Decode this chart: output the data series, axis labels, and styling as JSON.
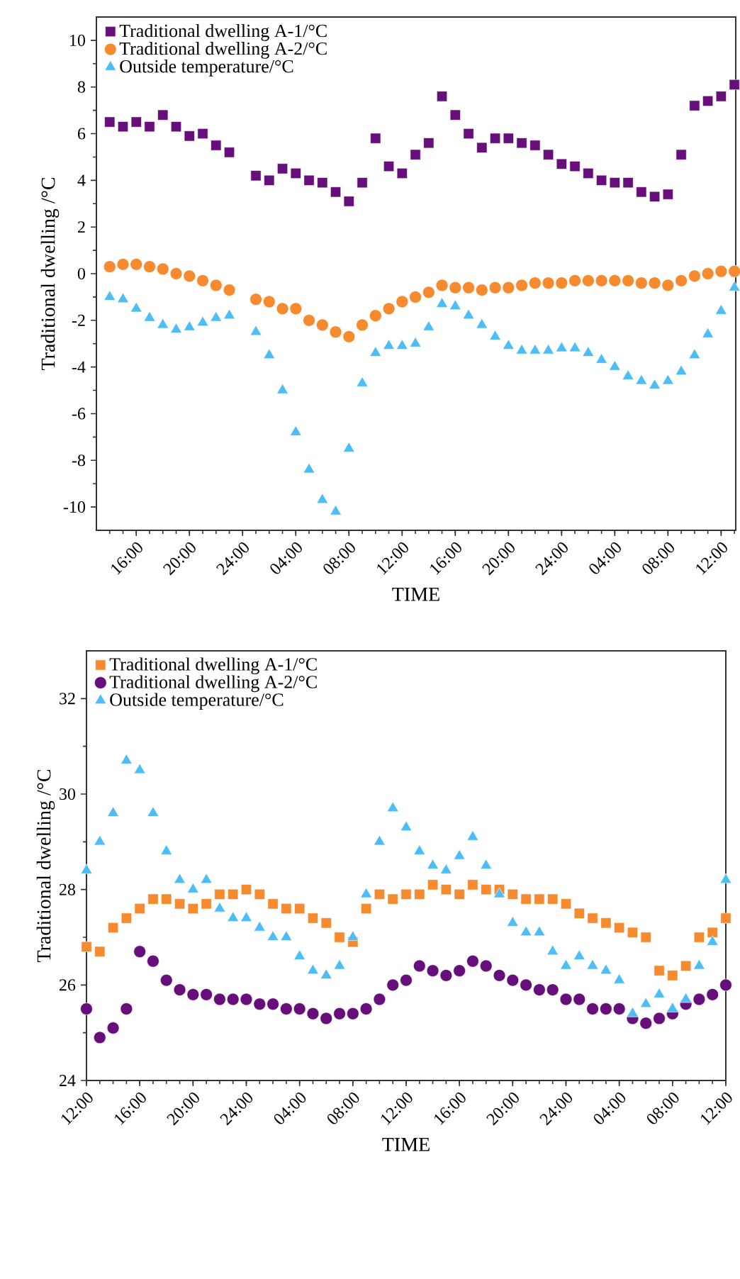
{
  "chart_data": [
    {
      "type": "scatter",
      "xlabel": "TIME",
      "ylabel": "Traditional dwelling /°C",
      "legend": "top left",
      "grid": false,
      "ylim": [
        -11,
        11
      ],
      "yticks": [
        -10,
        -8,
        -6,
        -4,
        -2,
        0,
        2,
        4,
        6,
        8,
        10
      ],
      "categories": [
        null,
        null,
        "16:00",
        null,
        null,
        null,
        "20:00",
        null,
        null,
        null,
        "24:00",
        null,
        null,
        null,
        "04:00",
        null,
        null,
        null,
        "08:00",
        null,
        null,
        null,
        "12:00",
        null,
        null,
        null,
        "16:00",
        null,
        null,
        null,
        "20:00",
        null,
        null,
        null,
        "24:00",
        null,
        null,
        null,
        "04:00",
        null,
        null,
        null,
        "08:00",
        null,
        null,
        null,
        "12:00",
        null
      ],
      "series": [
        {
          "name": "Traditional dwelling A-1/°C",
          "color": "#660e7a",
          "marker": "square",
          "values": [
            6.5,
            6.3,
            6.5,
            6.3,
            6.8,
            6.3,
            5.9,
            6.0,
            5.5,
            5.2,
            null,
            4.2,
            4.0,
            4.5,
            4.3,
            4.0,
            3.9,
            3.5,
            3.1,
            3.9,
            5.8,
            4.6,
            4.3,
            5.1,
            5.6,
            7.6,
            6.8,
            6.0,
            5.4,
            5.8,
            5.8,
            5.6,
            5.5,
            5.1,
            4.7,
            4.6,
            4.3,
            4.0,
            3.9,
            3.9,
            3.5,
            3.3,
            3.4,
            5.1,
            7.2,
            7.4,
            7.6,
            8.1
          ]
        },
        {
          "name": "Traditional dwelling A-2/°C",
          "color": "#f58a2e",
          "marker": "circle",
          "values": [
            0.3,
            0.4,
            0.4,
            0.3,
            0.2,
            0.0,
            -0.1,
            -0.3,
            -0.5,
            -0.7,
            null,
            -1.1,
            -1.2,
            -1.5,
            -1.5,
            -2.0,
            -2.2,
            -2.5,
            -2.7,
            -2.2,
            -1.8,
            -1.5,
            -1.2,
            -1.0,
            -0.8,
            -0.5,
            -0.6,
            -0.6,
            -0.7,
            -0.6,
            -0.6,
            -0.5,
            -0.4,
            -0.4,
            -0.4,
            -0.3,
            -0.3,
            -0.3,
            -0.3,
            -0.3,
            -0.4,
            -0.4,
            -0.5,
            -0.3,
            -0.1,
            0.0,
            0.1,
            0.1
          ]
        },
        {
          "name": "Outside temperature/°C",
          "color": "#4dbdf5",
          "marker": "triangle",
          "values": [
            -1.0,
            -1.1,
            -1.5,
            -1.9,
            -2.2,
            -2.4,
            -2.3,
            -2.1,
            -1.9,
            -1.8,
            null,
            -2.5,
            -3.5,
            -5.0,
            -6.8,
            -8.4,
            -9.7,
            -10.2,
            -7.5,
            -4.7,
            -3.4,
            -3.1,
            -3.1,
            -3.0,
            -2.3,
            -1.3,
            -1.4,
            -1.8,
            -2.2,
            -2.7,
            -3.1,
            -3.3,
            -3.3,
            -3.3,
            -3.2,
            -3.2,
            -3.4,
            -3.7,
            -4.0,
            -4.4,
            -4.6,
            -4.8,
            -4.6,
            -4.2,
            -3.5,
            -2.6,
            -1.6,
            -0.6
          ]
        }
      ]
    },
    {
      "type": "scatter",
      "xlabel": "TIME",
      "ylabel": "Traditional dwelling /°C",
      "legend": "top left",
      "grid": false,
      "ylim": [
        24,
        33
      ],
      "yticks": [
        24,
        26,
        28,
        30,
        32
      ],
      "categories": [
        "12:00",
        null,
        null,
        null,
        "16:00",
        null,
        null,
        null,
        "20:00",
        null,
        null,
        null,
        "24:00",
        null,
        null,
        null,
        "04:00",
        null,
        null,
        null,
        "08:00",
        null,
        null,
        null,
        "12:00",
        null,
        null,
        null,
        "16:00",
        null,
        null,
        null,
        "20:00",
        null,
        null,
        null,
        "24:00",
        null,
        null,
        null,
        "04:00",
        null,
        null,
        null,
        "08:00",
        null,
        null,
        null,
        "12:00"
      ],
      "series": [
        {
          "name": "Traditional dwelling A-1/°C",
          "color": "#f58a2e",
          "marker": "square",
          "values": [
            26.8,
            26.7,
            27.2,
            27.4,
            27.6,
            27.8,
            27.8,
            27.7,
            27.6,
            27.7,
            27.9,
            27.9,
            28.0,
            27.9,
            27.7,
            27.6,
            27.6,
            27.4,
            27.3,
            27.0,
            26.9,
            27.6,
            27.9,
            27.8,
            27.9,
            27.9,
            28.1,
            28.0,
            27.9,
            28.1,
            28.0,
            28.0,
            27.9,
            27.8,
            27.8,
            27.8,
            27.7,
            27.5,
            27.4,
            27.3,
            27.2,
            27.1,
            27.0,
            26.3,
            26.2,
            26.4,
            27.0,
            27.1,
            27.4
          ]
        },
        {
          "name": "Traditional dwelling A-2/°C",
          "color": "#660e7a",
          "marker": "circle",
          "values": [
            25.5,
            24.9,
            25.1,
            25.5,
            26.7,
            26.5,
            26.1,
            25.9,
            25.8,
            25.8,
            25.7,
            25.7,
            25.7,
            25.6,
            25.6,
            25.5,
            25.5,
            25.4,
            25.3,
            25.4,
            25.4,
            25.5,
            25.7,
            26.0,
            26.1,
            26.4,
            26.3,
            26.2,
            26.3,
            26.5,
            26.4,
            26.2,
            26.1,
            26.0,
            25.9,
            25.9,
            25.7,
            25.7,
            25.5,
            25.5,
            25.5,
            25.3,
            25.2,
            25.3,
            25.4,
            25.6,
            25.7,
            25.8,
            26.0
          ]
        },
        {
          "name": "Outside temperature/°C",
          "color": "#4dbdf5",
          "marker": "triangle",
          "values": [
            28.4,
            29.0,
            29.6,
            30.7,
            30.5,
            29.6,
            28.8,
            28.2,
            28.0,
            28.2,
            27.6,
            27.4,
            27.4,
            27.2,
            27.0,
            27.0,
            26.6,
            26.3,
            26.2,
            26.4,
            27.0,
            27.9,
            29.0,
            29.7,
            29.3,
            28.8,
            28.5,
            28.4,
            28.7,
            29.1,
            28.5,
            27.9,
            27.3,
            27.1,
            27.1,
            26.7,
            26.4,
            26.6,
            26.4,
            26.3,
            26.1,
            25.4,
            25.6,
            25.8,
            25.5,
            25.7,
            26.4,
            26.9,
            28.2
          ]
        }
      ]
    }
  ]
}
